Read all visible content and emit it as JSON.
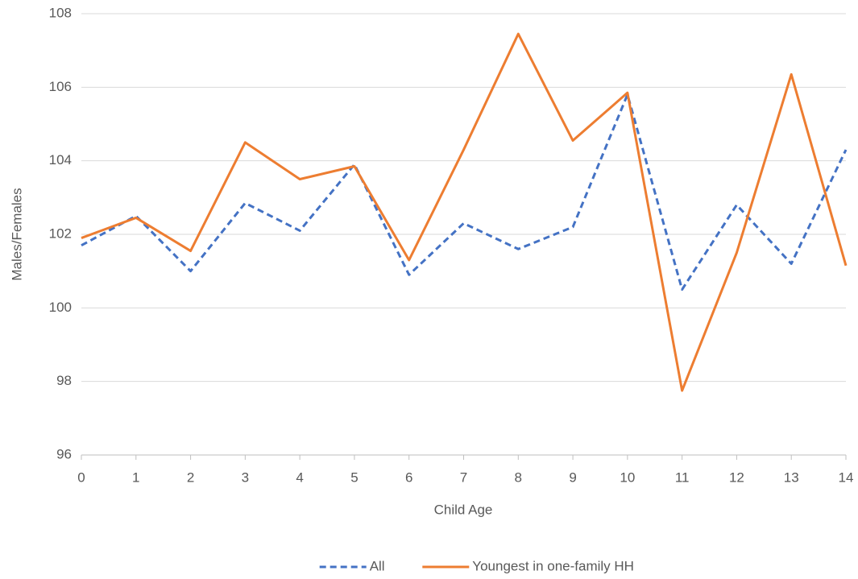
{
  "chart_data": {
    "type": "line",
    "x_label": "Child Age",
    "y_label": "Males/Females",
    "x": [
      0,
      1,
      2,
      3,
      4,
      5,
      6,
      7,
      8,
      9,
      10,
      11,
      12,
      13,
      14
    ],
    "xlim": [
      0,
      14
    ],
    "xticks": [
      0,
      1,
      2,
      3,
      4,
      5,
      6,
      7,
      8,
      9,
      10,
      11,
      12,
      13,
      14
    ],
    "ylim": [
      96,
      108
    ],
    "yticks": [
      96,
      98,
      100,
      102,
      104,
      106,
      108
    ],
    "grid": true,
    "legend": "bottom",
    "series": [
      {
        "name": "All",
        "color": "#4472c4",
        "style": "dashed",
        "values": [
          101.7,
          102.5,
          101.0,
          102.85,
          102.1,
          103.9,
          100.9,
          102.3,
          101.6,
          102.2,
          105.8,
          100.5,
          102.8,
          101.2,
          104.3
        ]
      },
      {
        "name": "Youngest in one-family HH",
        "color": "#ed7d31",
        "style": "solid",
        "values": [
          101.9,
          102.45,
          101.55,
          104.5,
          103.5,
          103.85,
          101.3,
          104.3,
          107.45,
          104.55,
          105.85,
          97.75,
          101.5,
          106.35,
          101.15
        ]
      }
    ]
  }
}
